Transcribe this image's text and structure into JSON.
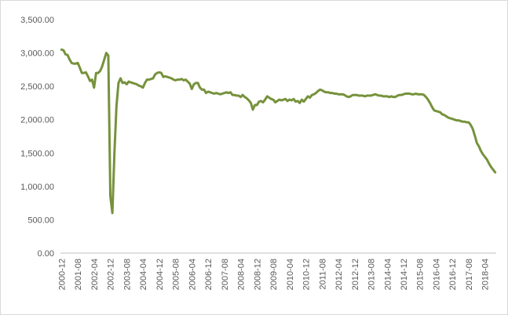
{
  "chart_data": {
    "type": "line",
    "categories": [
      "2000-12",
      null,
      null,
      null,
      null,
      null,
      null,
      null,
      "2001-08",
      null,
      null,
      null,
      null,
      null,
      null,
      null,
      "2002-04",
      null,
      null,
      null,
      null,
      null,
      null,
      null,
      "2002-12",
      null,
      null,
      null,
      null,
      null,
      null,
      null,
      "2003-08",
      null,
      null,
      null,
      null,
      null,
      null,
      null,
      "2004-04",
      null,
      null,
      null,
      null,
      null,
      null,
      null,
      "2004-12",
      null,
      null,
      null,
      null,
      null,
      null,
      null,
      "2005-08",
      null,
      null,
      null,
      null,
      null,
      null,
      null,
      "2006-04",
      null,
      null,
      null,
      null,
      null,
      null,
      null,
      "2006-12",
      null,
      null,
      null,
      null,
      null,
      null,
      null,
      "2007-08",
      null,
      null,
      null,
      null,
      null,
      null,
      null,
      "2008-04",
      null,
      null,
      null,
      null,
      null,
      null,
      null,
      "2008-12",
      null,
      null,
      null,
      null,
      null,
      null,
      null,
      "2009-08",
      null,
      null,
      null,
      null,
      null,
      null,
      null,
      "2010-04",
      null,
      null,
      null,
      null,
      null,
      null,
      null,
      "2010-12",
      null,
      null,
      null,
      null,
      null,
      null,
      null,
      "2011-08",
      null,
      null,
      null,
      null,
      null,
      null,
      null,
      "2012-04",
      null,
      null,
      null,
      null,
      null,
      null,
      null,
      "2012-12",
      null,
      null,
      null,
      null,
      null,
      null,
      null,
      "2013-08",
      null,
      null,
      null,
      null,
      null,
      null,
      null,
      "2014-04",
      null,
      null,
      null,
      null,
      null,
      null,
      null,
      "2014-12",
      null,
      null,
      null,
      null,
      null,
      null,
      null,
      "2015-08",
      null,
      null,
      null,
      null,
      null,
      null,
      null,
      "2016-04",
      null,
      null,
      null,
      null,
      null,
      null,
      null,
      "2016-12",
      null,
      null,
      null,
      null,
      null,
      null,
      null,
      "2017-08",
      null,
      null,
      null,
      null,
      null,
      null,
      null,
      "2018-04",
      null,
      null,
      null,
      null,
      null
    ],
    "values": [
      3050,
      3040,
      2980,
      2970,
      2900,
      2850,
      2840,
      2840,
      2850,
      2780,
      2700,
      2700,
      2710,
      2650,
      2580,
      2600,
      2480,
      2700,
      2700,
      2730,
      2800,
      2900,
      3000,
      2960,
      850,
      600,
      1500,
      2200,
      2550,
      2620,
      2550,
      2560,
      2530,
      2570,
      2560,
      2550,
      2540,
      2530,
      2510,
      2500,
      2480,
      2550,
      2600,
      2600,
      2610,
      2620,
      2680,
      2700,
      2710,
      2700,
      2640,
      2650,
      2640,
      2630,
      2620,
      2600,
      2590,
      2600,
      2600,
      2610,
      2590,
      2600,
      2570,
      2540,
      2460,
      2530,
      2550,
      2550,
      2480,
      2450,
      2450,
      2400,
      2420,
      2410,
      2400,
      2390,
      2400,
      2390,
      2380,
      2390,
      2400,
      2410,
      2400,
      2410,
      2370,
      2370,
      2360,
      2360,
      2340,
      2370,
      2340,
      2320,
      2290,
      2250,
      2150,
      2220,
      2220,
      2270,
      2280,
      2260,
      2300,
      2350,
      2330,
      2310,
      2300,
      2260,
      2280,
      2300,
      2290,
      2300,
      2310,
      2280,
      2300,
      2290,
      2310,
      2270,
      2280,
      2250,
      2300,
      2270,
      2310,
      2350,
      2330,
      2370,
      2380,
      2400,
      2430,
      2450,
      2440,
      2420,
      2410,
      2410,
      2400,
      2400,
      2390,
      2390,
      2380,
      2380,
      2380,
      2370,
      2350,
      2340,
      2350,
      2370,
      2370,
      2370,
      2360,
      2360,
      2360,
      2350,
      2360,
      2360,
      2360,
      2370,
      2380,
      2370,
      2360,
      2360,
      2350,
      2350,
      2350,
      2340,
      2350,
      2340,
      2340,
      2360,
      2370,
      2370,
      2380,
      2390,
      2390,
      2390,
      2380,
      2380,
      2390,
      2380,
      2380,
      2380,
      2370,
      2340,
      2300,
      2250,
      2190,
      2140,
      2130,
      2120,
      2110,
      2080,
      2070,
      2050,
      2030,
      2020,
      2010,
      2000,
      1990,
      1990,
      1980,
      1970,
      1970,
      1960,
      1960,
      1920,
      1860,
      1760,
      1650,
      1600,
      1530,
      1480,
      1440,
      1400,
      1340,
      1290,
      1250,
      1210
    ],
    "color": "#76923c",
    "ylim": [
      0,
      3500
    ],
    "yticks": [
      {
        "value": 0,
        "label": "0.00"
      },
      {
        "value": 500,
        "label": "500.00"
      },
      {
        "value": 1000,
        "label": "1,000.00"
      },
      {
        "value": 1500,
        "label": "1,500.00"
      },
      {
        "value": 2000,
        "label": "2,000.00"
      },
      {
        "value": 2500,
        "label": "2,500.00"
      },
      {
        "value": 3000,
        "label": "3,000.00"
      },
      {
        "value": 3500,
        "label": "3,500.00"
      }
    ],
    "grid": false
  }
}
